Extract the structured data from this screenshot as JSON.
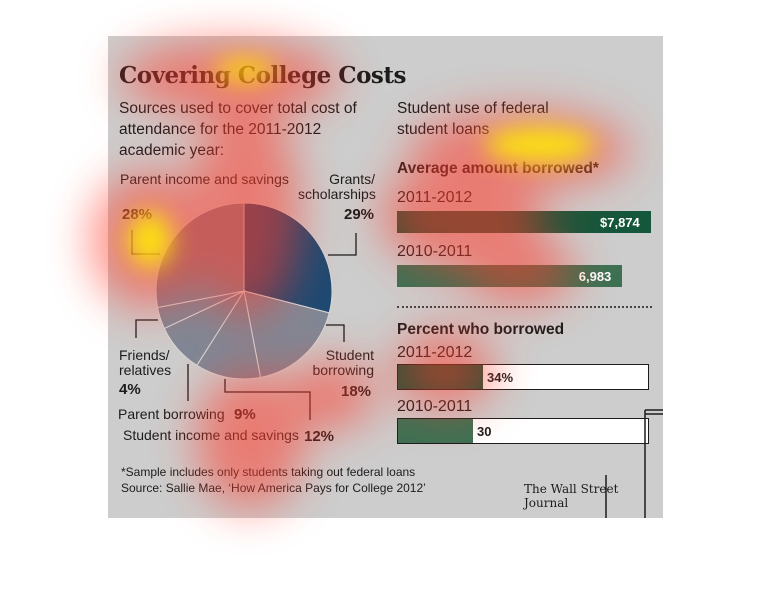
{
  "header": {
    "title": "Covering College Costs",
    "left_subtitle": "Sources used to cover total cost of attendance for the 2011-2012 academic year:",
    "right_subtitle": "Student use of federal student loans"
  },
  "footer": {
    "note": "*Sample includes only students taking out federal loans",
    "source": "Source: Sallie Mae, ‘How America Pays for College 2012’",
    "credit": "The Wall Street Journal"
  },
  "colors": {
    "navy": "#1d4a72",
    "slate": "#7f8896",
    "dark_green": "#14573c",
    "mid_green": "#3d7154"
  },
  "chart_data": [
    {
      "type": "pie",
      "title": "Sources used to cover total cost of attendance for the 2011-2012 academic year:",
      "slices": [
        {
          "label": "Grants/ scholarships",
          "value": 29,
          "display": "29%",
          "color": "#1d4a72"
        },
        {
          "label": "Student borrowing",
          "value": 18,
          "display": "18%",
          "color": "#7f8896"
        },
        {
          "label": "Student income and savings",
          "value": 12,
          "display": "12%",
          "color": "#7f8896"
        },
        {
          "label": "Parent borrowing",
          "value": 9,
          "display": "9%",
          "color": "#7f8896"
        },
        {
          "label": "Friends/ relatives",
          "value": 4,
          "display": "4%",
          "color": "#7f8896"
        },
        {
          "label": "Parent income and savings",
          "value": 28,
          "display": "28%",
          "color": "#7f8896"
        }
      ]
    },
    {
      "type": "bar",
      "title": "Average amount borrowed*",
      "categories": [
        "2011-2012",
        "2010-2011"
      ],
      "values": [
        7874,
        6983
      ],
      "value_labels": [
        "$7,874",
        "6,983"
      ],
      "colors": [
        "#14573c",
        "#3d7154"
      ]
    },
    {
      "type": "bar",
      "title": "Percent who borrowed",
      "categories": [
        "2011-2012",
        "2010-2011"
      ],
      "values": [
        34,
        30
      ],
      "value_labels": [
        "34%",
        "30"
      ],
      "ylim": [
        0,
        100
      ],
      "colors": [
        "#14573c",
        "#3d7154"
      ]
    }
  ]
}
